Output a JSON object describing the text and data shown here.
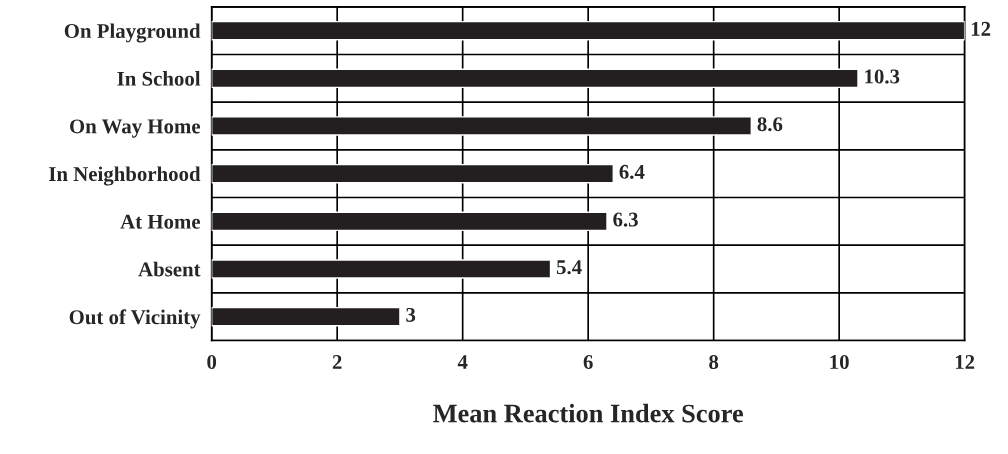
{
  "chart_data": {
    "type": "bar",
    "orientation": "horizontal",
    "xlabel": "Mean Reaction Index Score",
    "categories": [
      "On Playground",
      "In School",
      "On Way Home",
      "In Neighborhood",
      "At Home",
      "Absent",
      "Out of Vicinity"
    ],
    "values": [
      12,
      10.3,
      8.6,
      6.4,
      6.3,
      5.4,
      3
    ],
    "color": "#231f20",
    "xlim": [
      0,
      12
    ],
    "xticks": [
      0,
      2,
      4,
      6,
      8,
      10,
      12
    ],
    "grid": true,
    "data_labels": true
  }
}
